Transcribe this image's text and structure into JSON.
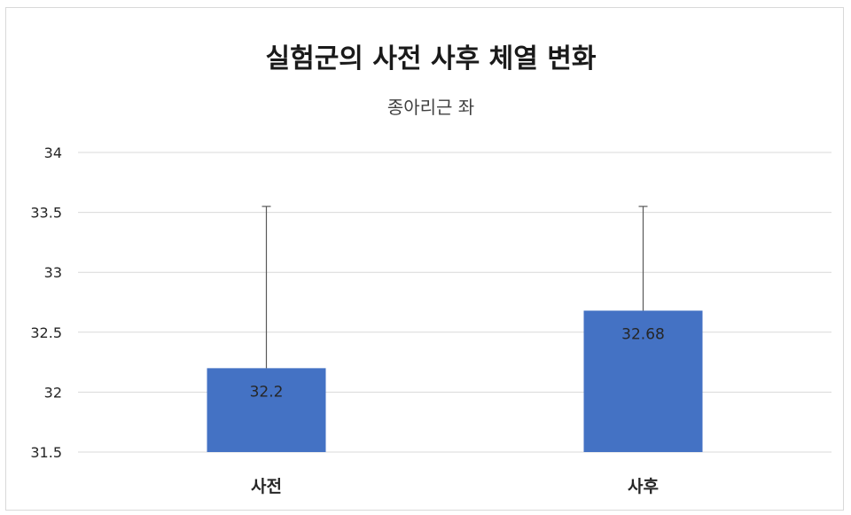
{
  "chart_data": {
    "type": "bar",
    "title": "실험군의 사전 사후 체열 변화",
    "subtitle": "종아리근 좌",
    "categories": [
      "사전",
      "사후"
    ],
    "values": [
      32.2,
      32.68
    ],
    "data_labels": [
      "32.2",
      "32.68"
    ],
    "error_bar_upper": [
      33.55,
      33.55
    ],
    "ylim": [
      31.5,
      34
    ],
    "yticks": [
      31.5,
      32,
      32.5,
      33,
      33.5,
      34
    ],
    "ytick_labels": [
      "31.5",
      "32",
      "32.5",
      "33",
      "33.5",
      "34"
    ],
    "xlabel": "",
    "ylabel": "",
    "grid": true,
    "legend": "none",
    "bar_color": "#4472c4",
    "error_bar_color": "#595959",
    "gridline_color": "#d9d9d9"
  }
}
